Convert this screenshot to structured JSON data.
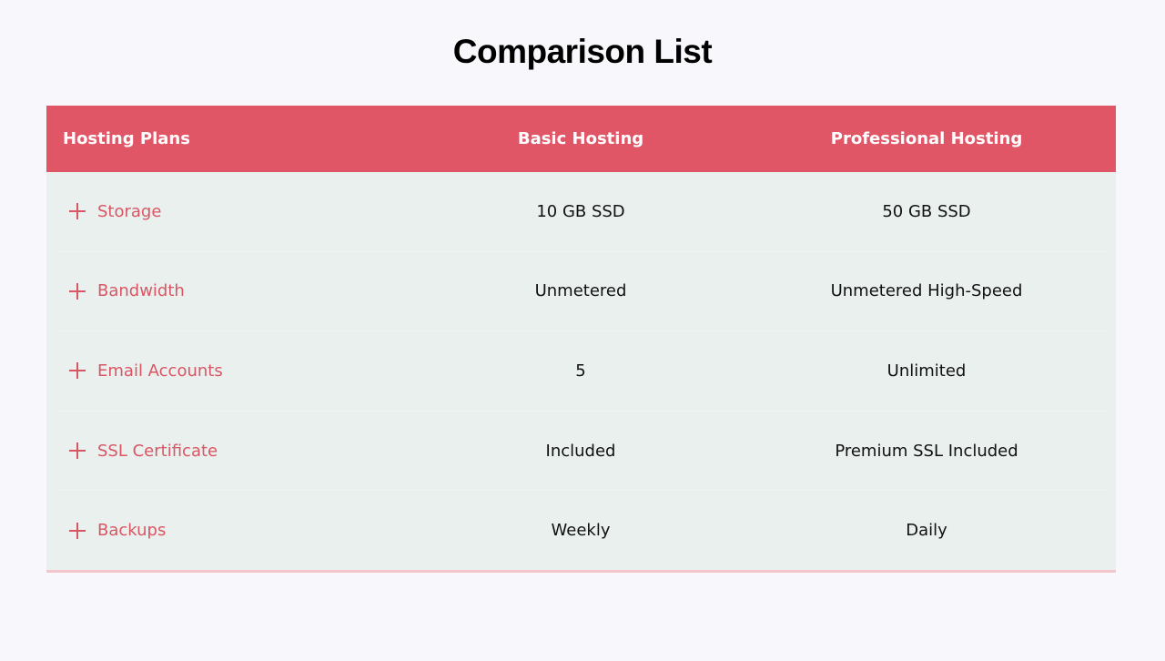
{
  "title": "Comparison List",
  "accent": "#e05667",
  "headers": [
    "Hosting Plans",
    "Basic Hosting",
    "Professional Hosting"
  ],
  "rows": [
    {
      "feature": "Storage",
      "basic": "10 GB SSD",
      "pro": "50 GB SSD",
      "icon": "plus-icon"
    },
    {
      "feature": "Bandwidth",
      "basic": "Unmetered",
      "pro": "Unmetered High-Speed",
      "icon": "plus-icon"
    },
    {
      "feature": "Email Accounts",
      "basic": "5",
      "pro": "Unlimited",
      "icon": "plus-icon"
    },
    {
      "feature": "SSL Certificate",
      "basic": "Included",
      "pro": "Premium SSL Included",
      "icon": "plus-icon"
    },
    {
      "feature": "Backups",
      "basic": "Weekly",
      "pro": "Daily",
      "icon": "plus-icon"
    }
  ]
}
